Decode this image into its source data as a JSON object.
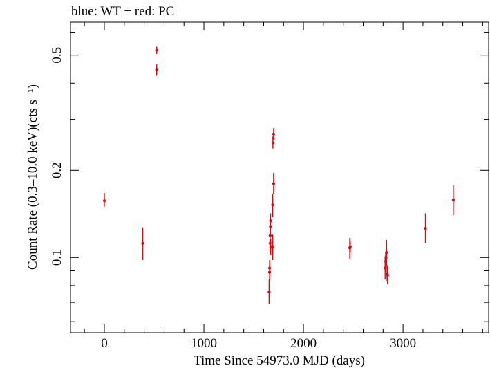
{
  "chart_data": {
    "type": "scatter",
    "title": "blue: WT − red: PC",
    "xlabel": "Time Since 54973.0 MJD (days)",
    "ylabel": "Count Rate (0.3–10.0 keV)(cts s⁻¹)",
    "xlim": [
      -340,
      3860
    ],
    "ylim": [
      0.055,
      0.65
    ],
    "y_scale": "log",
    "x_ticks": [
      0,
      1000,
      2000,
      3000
    ],
    "x_tick_labels": [
      "0",
      "1000",
      "2000",
      "3000"
    ],
    "y_ticks": [
      0.1,
      0.2,
      0.5
    ],
    "y_tick_labels": [
      "0.1",
      "0.2",
      "0.5"
    ],
    "grid": false,
    "series": [
      {
        "color": "#e8000b",
        "points": [
          {
            "x": 0,
            "y": 0.157,
            "ylo": 0.15,
            "yhi": 0.167
          },
          {
            "x": 385,
            "y": 0.112,
            "ylo": 0.098,
            "yhi": 0.127
          },
          {
            "x": 525,
            "y": 0.52,
            "ylo": 0.505,
            "yhi": 0.535
          },
          {
            "x": 525,
            "y": 0.445,
            "ylo": 0.425,
            "yhi": 0.465
          },
          {
            "x": 1655,
            "y": 0.076,
            "ylo": 0.069,
            "yhi": 0.084
          },
          {
            "x": 1660,
            "y": 0.092,
            "ylo": 0.087,
            "yhi": 0.098
          },
          {
            "x": 1660,
            "y": 0.089,
            "ylo": 0.084,
            "yhi": 0.095
          },
          {
            "x": 1665,
            "y": 0.112,
            "ylo": 0.103,
            "yhi": 0.12
          },
          {
            "x": 1665,
            "y": 0.119,
            "ylo": 0.112,
            "yhi": 0.127
          },
          {
            "x": 1668,
            "y": 0.128,
            "ylo": 0.12,
            "yhi": 0.137
          },
          {
            "x": 1670,
            "y": 0.134,
            "ylo": 0.126,
            "yhi": 0.142
          },
          {
            "x": 1672,
            "y": 0.109,
            "ylo": 0.102,
            "yhi": 0.116
          },
          {
            "x": 1690,
            "y": 0.152,
            "ylo": 0.138,
            "yhi": 0.166
          },
          {
            "x": 1690,
            "y": 0.109,
            "ylo": 0.098,
            "yhi": 0.12
          },
          {
            "x": 1693,
            "y": 0.249,
            "ylo": 0.238,
            "yhi": 0.262
          },
          {
            "x": 1700,
            "y": 0.267,
            "ylo": 0.255,
            "yhi": 0.28
          },
          {
            "x": 1700,
            "y": 0.18,
            "ylo": 0.166,
            "yhi": 0.196
          },
          {
            "x": 2465,
            "y": 0.108,
            "ylo": 0.099,
            "yhi": 0.117
          },
          {
            "x": 2470,
            "y": 0.109,
            "ylo": 0.104,
            "yhi": 0.114
          },
          {
            "x": 2820,
            "y": 0.092,
            "ylo": 0.084,
            "yhi": 0.101
          },
          {
            "x": 2825,
            "y": 0.097,
            "ylo": 0.09,
            "yhi": 0.104
          },
          {
            "x": 2830,
            "y": 0.1,
            "ylo": 0.093,
            "yhi": 0.107
          },
          {
            "x": 2835,
            "y": 0.104,
            "ylo": 0.094,
            "yhi": 0.115
          },
          {
            "x": 2840,
            "y": 0.088,
            "ylo": 0.083,
            "yhi": 0.094
          },
          {
            "x": 2845,
            "y": 0.087,
            "ylo": 0.081,
            "yhi": 0.094
          },
          {
            "x": 3225,
            "y": 0.126,
            "ylo": 0.112,
            "yhi": 0.142
          },
          {
            "x": 3505,
            "y": 0.158,
            "ylo": 0.14,
            "yhi": 0.178
          }
        ]
      }
    ]
  }
}
